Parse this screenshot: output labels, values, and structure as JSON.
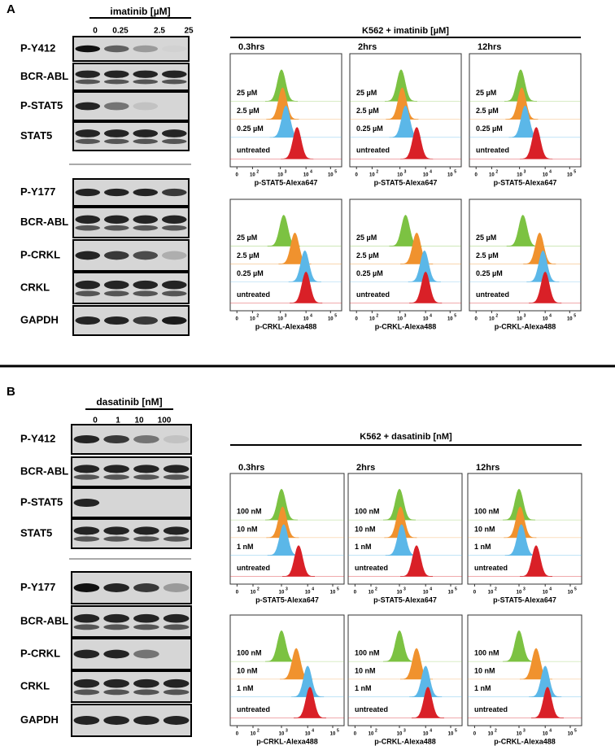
{
  "panels": [
    {
      "label": "A",
      "treatment": "imatinib [µM]",
      "doses": [
        "0",
        "0.25",
        "2.5",
        "25"
      ],
      "blots_upper": [
        "P-Y412",
        "BCR-ABL",
        "P-STAT5",
        "STAT5"
      ],
      "blots_lower": [
        "P-Y177",
        "BCR-ABL",
        "P-CRKL",
        "CRKL",
        "GAPDH"
      ],
      "flow_title": "K562 + imatinib [µM]",
      "times": [
        "0.3hrs",
        "2hrs",
        "12hrs"
      ],
      "samples": [
        "25 µM",
        "2.5 µM",
        "0.25 µM",
        "untreated"
      ],
      "readouts": [
        "p-STAT5-Alexa647",
        "p-CRKL-Alexa488"
      ]
    },
    {
      "label": "B",
      "treatment": "dasatinib [nM]",
      "doses": [
        "0",
        "1",
        "10",
        "100"
      ],
      "blots_upper": [
        "P-Y412",
        "BCR-ABL",
        "P-STAT5",
        "STAT5"
      ],
      "blots_lower": [
        "P-Y177",
        "BCR-ABL",
        "P-CRKL",
        "CRKL",
        "GAPDH"
      ],
      "flow_title": "K562 + dasatinib [nM]",
      "times": [
        "0.3hrs",
        "2hrs",
        "12hrs"
      ],
      "samples": [
        "100 nM",
        "10 nM",
        "1 nM",
        "untreated"
      ],
      "readouts": [
        "p-STAT5-Alexa647",
        "p-CRKL-Alexa488"
      ]
    }
  ],
  "axis_ticks": [
    {
      "base": "0"
    },
    {
      "base": "10",
      "exp": "2"
    },
    {
      "base": "10",
      "exp": "3"
    },
    {
      "base": "10",
      "exp": "4"
    },
    {
      "base": "10",
      "exp": "5"
    }
  ]
}
